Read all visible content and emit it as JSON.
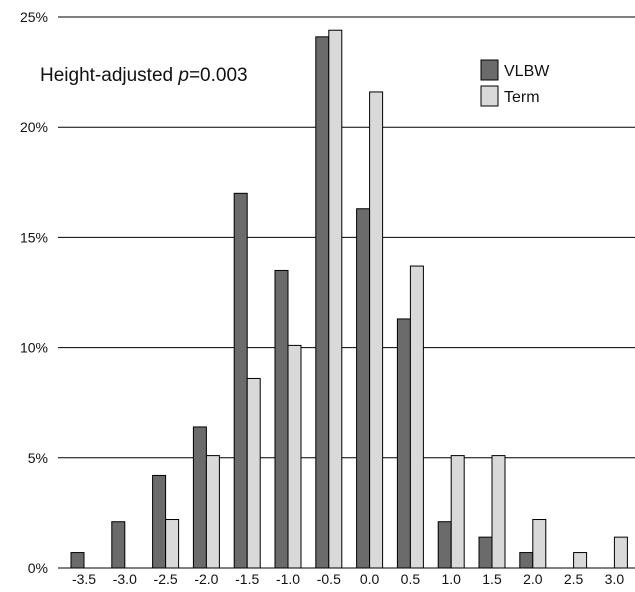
{
  "chart_data": {
    "type": "bar",
    "categories": [
      "-3.5",
      "-3.0",
      "-2.5",
      "-2.0",
      "-1.5",
      "-1.0",
      "-0.5",
      "0.0",
      "0.5",
      "1.0",
      "1.5",
      "2.0",
      "2.5",
      "3.0"
    ],
    "series": [
      {
        "name": "VLBW",
        "color": "#6b6b6b",
        "values": [
          0.7,
          2.1,
          4.2,
          6.4,
          17.0,
          13.5,
          24.1,
          16.3,
          11.3,
          2.1,
          1.4,
          0.7,
          0,
          0
        ]
      },
      {
        "name": "Term",
        "color": "#d9d9d9",
        "values": [
          0,
          0,
          2.2,
          5.1,
          8.6,
          10.1,
          24.4,
          21.6,
          13.7,
          5.1,
          5.1,
          2.2,
          0.7,
          1.4
        ]
      }
    ],
    "yticks": [
      "0%",
      "5%",
      "10%",
      "15%",
      "20%",
      "25%"
    ],
    "ylim": [
      0,
      25
    ],
    "annotation": {
      "prefix": "Height-adjusted ",
      "italic": "p",
      "suffix": "=0.003"
    },
    "legend_position": "top-right",
    "grid": true
  }
}
